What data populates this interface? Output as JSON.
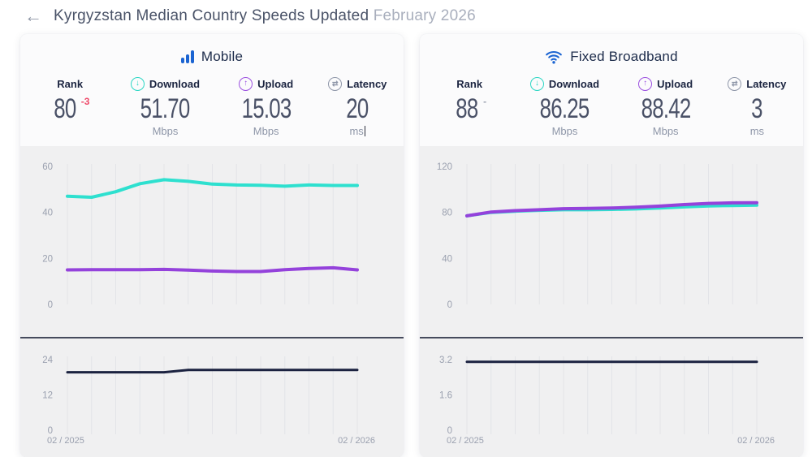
{
  "page": {
    "back_icon": "←",
    "title_main": "Kyrgyzstan Median Country Speeds Updated",
    "title_date": "February 2026"
  },
  "colors": {
    "download": "#2ee0cf",
    "upload": "#9442db",
    "latency_line": "#1b2240",
    "brand_blue": "#1b64d2",
    "rank_down": "#ef4b6b",
    "rank_flat": "#9ba1b0"
  },
  "cards": [
    {
      "title": "Mobile",
      "stats": [
        {
          "label": "Rank",
          "value": "80",
          "change": "-3",
          "change_color": "#ef4b6b",
          "unit": ""
        },
        {
          "label": "Download",
          "value": "51.70",
          "unit": "Mbps"
        },
        {
          "label": "Upload",
          "value": "15.03",
          "unit": "Mbps"
        },
        {
          "label": "Latency",
          "value": "20",
          "unit": "ms"
        }
      ]
    },
    {
      "title": "Fixed Broadband",
      "stats": [
        {
          "label": "Rank",
          "value": "88",
          "change": "-",
          "change_color": "#9ba1b0",
          "unit": ""
        },
        {
          "label": "Download",
          "value": "86.25",
          "unit": "Mbps"
        },
        {
          "label": "Upload",
          "value": "88.42",
          "unit": "Mbps"
        },
        {
          "label": "Latency",
          "value": "3",
          "unit": "ms"
        }
      ]
    }
  ],
  "chart_data": [
    {
      "id": "mobile-speed",
      "type": "line",
      "kind": "speed",
      "title": "Mobile download/upload speed history (Mbps)",
      "points": 13,
      "x_start": "02 / 2025",
      "x_end": "02 / 2026",
      "ylim": [
        0,
        66
      ],
      "yticks": [
        60,
        40,
        20,
        0
      ],
      "grid": "vertical-monthly",
      "legend": "none",
      "series": [
        {
          "name": "Download",
          "color": "#2ee0cf",
          "values": [
            47,
            46.6,
            49,
            52.5,
            54.2,
            53.5,
            52.3,
            51.9,
            51.8,
            51.4,
            51.9,
            51.7,
            51.7
          ]
        },
        {
          "name": "Upload",
          "color": "#9442db",
          "values": [
            15.0,
            15.1,
            15.1,
            15.1,
            15.2,
            14.9,
            14.5,
            14.3,
            14.3,
            15.1,
            15.6,
            15.9,
            15.0
          ]
        }
      ]
    },
    {
      "id": "mobile-latency",
      "type": "line",
      "kind": "latency",
      "title": "Mobile latency history (ms)",
      "points": 13,
      "x_start": "02 / 2025",
      "x_end": "02 / 2026",
      "ylim": [
        0,
        26.5
      ],
      "yticks": [
        24,
        12,
        0
      ],
      "grid": "vertical-monthly",
      "legend": "none",
      "series": [
        {
          "name": "Latency",
          "color": "#1b2240",
          "values": [
            19.7,
            19.7,
            19.7,
            19.7,
            19.7,
            20.5,
            20.5,
            20.5,
            20.5,
            20.5,
            20.5,
            20.5,
            20.5
          ]
        }
      ]
    },
    {
      "id": "fixed-speed",
      "type": "line",
      "kind": "speed",
      "title": "Fixed broadband download/upload speed history (Mbps)",
      "points": 13,
      "x_start": "02 / 2025",
      "x_end": "02 / 2026",
      "ylim": [
        0,
        132
      ],
      "yticks": [
        120,
        80,
        40,
        0
      ],
      "grid": "vertical-monthly",
      "legend": "none",
      "series": [
        {
          "name": "Download",
          "color": "#2ee0cf",
          "values": [
            77,
            80,
            81,
            81.8,
            82.3,
            82.3,
            82.6,
            83,
            83.8,
            84.8,
            85.6,
            86,
            86.25
          ]
        },
        {
          "name": "Upload",
          "color": "#9442db",
          "values": [
            77,
            80.3,
            81.5,
            82.3,
            83.2,
            83.5,
            83.8,
            84.5,
            85.5,
            86.8,
            87.8,
            88.3,
            88.42
          ]
        }
      ]
    },
    {
      "id": "fixed-latency",
      "type": "line",
      "kind": "latency",
      "title": "Fixed broadband latency history (ms)",
      "points": 13,
      "x_start": "02 / 2025",
      "x_end": "02 / 2026",
      "ylim": [
        0,
        3.55
      ],
      "yticks": [
        3.2,
        1.6,
        0
      ],
      "grid": "vertical-monthly",
      "legend": "none",
      "series": [
        {
          "name": "Latency",
          "color": "#1b2240",
          "values": [
            3.1,
            3.1,
            3.1,
            3.1,
            3.1,
            3.1,
            3.1,
            3.1,
            3.1,
            3.1,
            3.1,
            3.1,
            3.1
          ]
        }
      ]
    }
  ]
}
